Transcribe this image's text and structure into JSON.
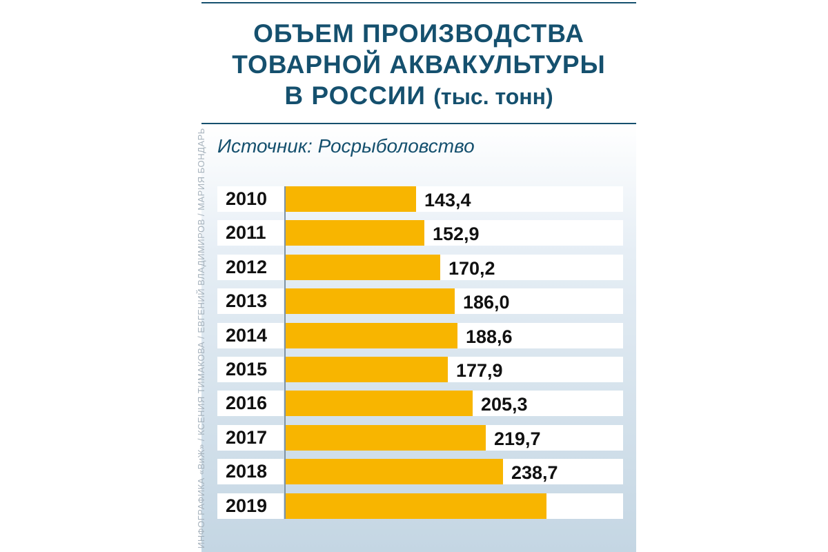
{
  "title": {
    "line1": "ОБЪЕМ ПРОИЗВОДСТВА",
    "line2": "ТОВАРНОЙ АКВАКУЛЬТУРЫ",
    "line3": "В РОССИИ",
    "unit": "(тыс. тонн)"
  },
  "source": "Источник: Росрыболовство",
  "credit": "ИНФОГРАФИКА «ВиЖ» / КСЕНИЯ ТИМАКОВА / ЕВГЕНИЙ ВЛАДИМИРОВ / МАРИЯ БОНДАРЬ",
  "colors": {
    "title": "#15506e",
    "bar": "#f8b500",
    "axis": "#7e93a4"
  },
  "chart_data": {
    "type": "bar",
    "orientation": "horizontal",
    "categories": [
      "2010",
      "2011",
      "2012",
      "2013",
      "2014",
      "2015",
      "2016",
      "2017",
      "2018",
      "2019"
    ],
    "values": [
      143.4,
      152.9,
      170.2,
      186.0,
      188.6,
      177.9,
      205.3,
      219.7,
      238.7,
      286
    ],
    "value_labels": [
      "143,4",
      "152,9",
      "170,2",
      "186,0",
      "188,6",
      "177,9",
      "205,3",
      "219,7",
      "238,7",
      ""
    ],
    "xlim": [
      0,
      370
    ],
    "grid": false,
    "legend": "none"
  }
}
